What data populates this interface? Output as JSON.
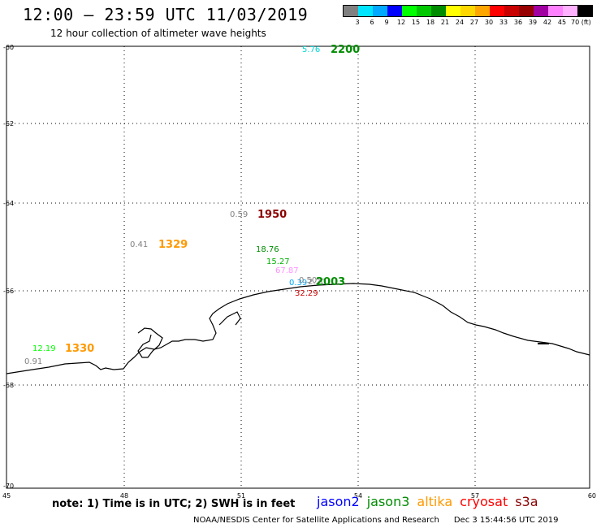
{
  "header": {
    "title": "12:00 – 23:59 UTC 11/03/2019",
    "subtitle": "12 hour collection of altimeter wave heights"
  },
  "legend": {
    "colors": [
      "#808080",
      "#00e5ff",
      "#00a8ff",
      "#0000ff",
      "#00ff00",
      "#00c800",
      "#008c00",
      "#ffff00",
      "#ffd700",
      "#ffa500",
      "#ff0000",
      "#c80000",
      "#960000",
      "#a000a0",
      "#ff80ff",
      "#ffb0ff",
      "#000000"
    ],
    "labels": [
      "3",
      "6",
      "9",
      "12",
      "15",
      "18",
      "21",
      "24",
      "27",
      "30",
      "33",
      "36",
      "39",
      "42",
      "45",
      "70 (ft)"
    ]
  },
  "map_axes": {
    "lon_ticks": [
      "45",
      "48",
      "51",
      "54",
      "57",
      "60"
    ],
    "lat_ticks": [
      "-60",
      "-62",
      "-64",
      "-66",
      "-68",
      "-70"
    ]
  },
  "observations": [
    {
      "wave": "5.76",
      "wave_color": "#00d8d8",
      "time": "2200",
      "time_color": "#008c00"
    },
    {
      "wave": "0.59",
      "wave_color": "#808080",
      "time": "1950",
      "time_color": "#8b0000"
    },
    {
      "wave": "0.41",
      "wave_color": "#808080",
      "time": "1329",
      "time_color": "#ff9900"
    },
    {
      "wave": "18.76",
      "wave_color": "#008c00"
    },
    {
      "wave": "15.27",
      "wave_color": "#00b000"
    },
    {
      "wave": "67.87",
      "wave_color": "#ff90ff"
    },
    {
      "wave": "0.39",
      "wave_color": "#00a8ff"
    },
    {
      "wave": "0.50",
      "wave_color": "#808080"
    },
    {
      "wave": "2.20",
      "wave_color": "#808080",
      "time": "2003",
      "time_color": "#008c00"
    },
    {
      "wave": "32.29",
      "wave_color": "#c80000"
    },
    {
      "wave": "12.19",
      "wave_color": "#00ff00",
      "time": "1330",
      "time_color": "#ff9900"
    },
    {
      "wave": "0.91",
      "wave_color": "#808080"
    }
  ],
  "footer": {
    "note": "note: 1) Time is in UTC; 2) SWH is in feet",
    "missions": [
      {
        "name": "jason2",
        "color": "#0000ff"
      },
      {
        "name": "jason3",
        "color": "#008c00"
      },
      {
        "name": "altika",
        "color": "#ff9900"
      },
      {
        "name": "cryosat",
        "color": "#ff0000"
      },
      {
        "name": "s3a",
        "color": "#8b0000"
      }
    ],
    "credit": "NOAA/NESDIS Center for Satellite Applications and Research",
    "timestamp": "Dec  3 15:44:56 UTC 2019"
  }
}
